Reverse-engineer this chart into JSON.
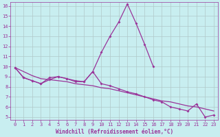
{
  "xlabel": "Windchill (Refroidissement éolien,°C)",
  "x": [
    0,
    1,
    2,
    3,
    4,
    5,
    6,
    7,
    8,
    9,
    10,
    11,
    12,
    13,
    14,
    15,
    16,
    17,
    18,
    19,
    20,
    21,
    22,
    23
  ],
  "line1_x": [
    0,
    1,
    2,
    3,
    4,
    5,
    6,
    7,
    8,
    9,
    10,
    11,
    12,
    13,
    14,
    15,
    16
  ],
  "line1_y": [
    9.9,
    8.9,
    8.6,
    8.3,
    8.9,
    9.0,
    8.8,
    8.6,
    8.5,
    9.5,
    11.4,
    13.0,
    14.4,
    16.2,
    14.3,
    12.2,
    10.0
  ],
  "line2_x": [
    0,
    1,
    2,
    3,
    4,
    5,
    6,
    7,
    8,
    9,
    10,
    11,
    12,
    13,
    14,
    15,
    16,
    17,
    18,
    19,
    20,
    21,
    22,
    23
  ],
  "line2_y": [
    9.9,
    8.9,
    8.6,
    8.3,
    8.7,
    9.0,
    8.8,
    8.5,
    8.5,
    9.5,
    8.3,
    8.1,
    7.8,
    7.5,
    7.3,
    7.0,
    6.7,
    6.5,
    6.0,
    5.8,
    5.6,
    6.3,
    5.0,
    5.2
  ],
  "line3_x": [
    0,
    1,
    2,
    3,
    4,
    5,
    6,
    7,
    8,
    9,
    10,
    11,
    12,
    13,
    14,
    15,
    16,
    17,
    18,
    19,
    20,
    21,
    22,
    23
  ],
  "line3_y": [
    9.9,
    9.5,
    9.1,
    8.8,
    8.7,
    8.6,
    8.5,
    8.3,
    8.2,
    8.1,
    7.9,
    7.8,
    7.6,
    7.4,
    7.2,
    7.0,
    6.8,
    6.6,
    6.5,
    6.3,
    6.1,
    6.0,
    5.8,
    5.6
  ],
  "bg_color": "#c8eef0",
  "line_color": "#993399",
  "ylim_min": 4.7,
  "ylim_max": 16.4,
  "xlim_min": -0.5,
  "xlim_max": 23.5,
  "yticks": [
    5,
    6,
    7,
    8,
    9,
    10,
    11,
    12,
    13,
    14,
    15,
    16
  ],
  "xticks": [
    0,
    1,
    2,
    3,
    4,
    5,
    6,
    7,
    8,
    9,
    10,
    11,
    12,
    13,
    14,
    15,
    16,
    17,
    18,
    19,
    20,
    21,
    22,
    23
  ],
  "grid_color": "#b0c8c8"
}
